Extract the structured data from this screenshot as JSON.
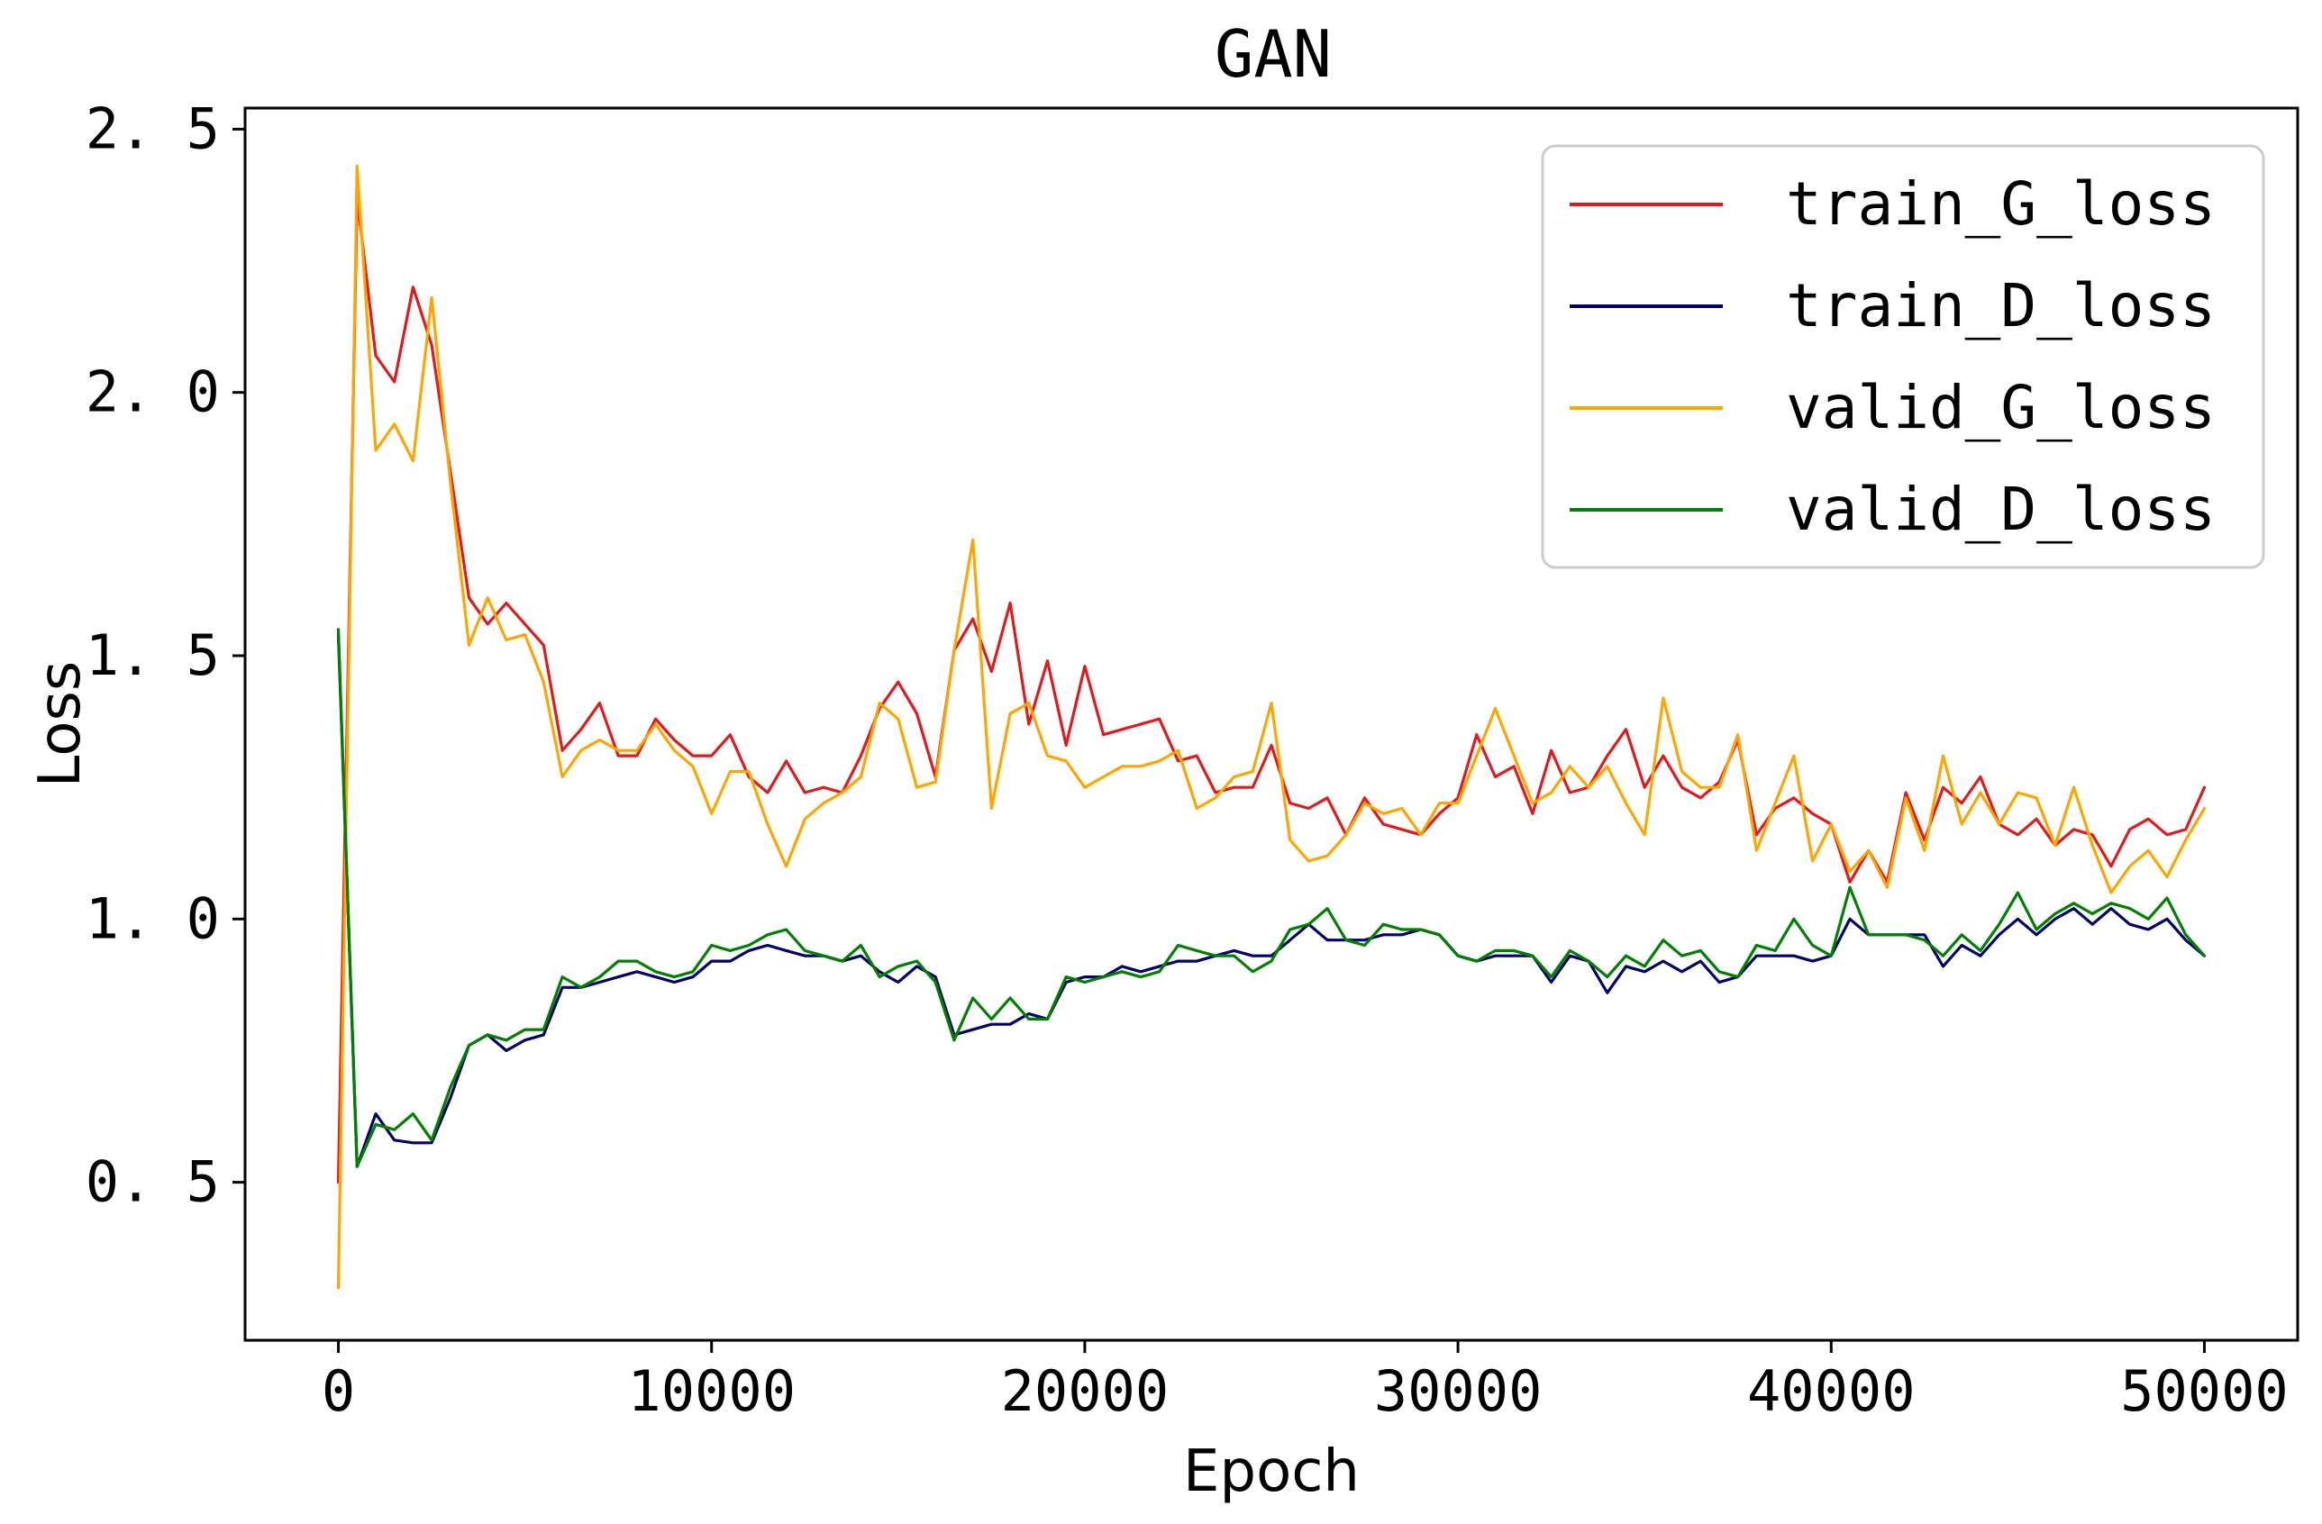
{
  "chart_data": {
    "type": "line",
    "title": "GAN",
    "xlabel": "Epoch",
    "ylabel": "Loss",
    "xlim": [
      -2500,
      52500
    ],
    "ylim": [
      0.2,
      2.54
    ],
    "xticks": [
      0,
      10000,
      20000,
      30000,
      40000,
      50000
    ],
    "xtick_labels": [
      "0",
      "10000",
      "20000",
      "30000",
      "40000",
      "50000"
    ],
    "yticks": [
      0.5,
      1.0,
      1.5,
      2.0,
      2.5
    ],
    "ytick_labels": [
      "0. 5",
      "1. 0",
      "1. 5",
      "2. 0",
      "2. 5"
    ],
    "grid": false,
    "legend_position": "upper right",
    "x": [
      0,
      500,
      1000,
      1500,
      2000,
      2500,
      3000,
      3500,
      4000,
      4500,
      5000,
      5500,
      6000,
      6500,
      7000,
      7500,
      8000,
      8500,
      9000,
      9500,
      10000,
      10500,
      11000,
      11500,
      12000,
      12500,
      13000,
      13500,
      14000,
      14500,
      15000,
      15500,
      16000,
      16500,
      17000,
      17500,
      18000,
      18500,
      19000,
      19500,
      20000,
      20500,
      21000,
      21500,
      22000,
      22500,
      23000,
      23500,
      24000,
      24500,
      25000,
      25500,
      26000,
      26500,
      27000,
      27500,
      28000,
      28500,
      29000,
      29500,
      30000,
      30500,
      31000,
      31500,
      32000,
      32500,
      33000,
      33500,
      34000,
      34500,
      35000,
      35500,
      36000,
      36500,
      37000,
      37500,
      38000,
      38500,
      39000,
      39500,
      40000,
      40500,
      41000,
      41500,
      42000,
      42500,
      43000,
      43500,
      44000,
      44500,
      45000,
      45500,
      46000,
      46500,
      47000,
      47500,
      48000,
      48500,
      49000,
      49500,
      50000
    ],
    "series": [
      {
        "name": "train_G_loss",
        "color": "#e31a1c",
        "values": [
          0.5,
          2.37,
          2.07,
          2.02,
          2.2,
          2.09,
          1.85,
          1.61,
          1.56,
          1.6,
          1.56,
          1.52,
          1.32,
          1.36,
          1.41,
          1.31,
          1.31,
          1.38,
          1.34,
          1.31,
          1.31,
          1.35,
          1.27,
          1.24,
          1.3,
          1.24,
          1.25,
          1.24,
          1.31,
          1.4,
          1.45,
          1.39,
          1.27,
          1.51,
          1.57,
          1.47,
          1.6,
          1.37,
          1.49,
          1.33,
          1.48,
          1.35,
          1.36,
          1.37,
          1.38,
          1.3,
          1.31,
          1.24,
          1.25,
          1.25,
          1.33,
          1.22,
          1.21,
          1.23,
          1.16,
          1.23,
          1.18,
          1.17,
          1.16,
          1.2,
          1.23,
          1.35,
          1.27,
          1.29,
          1.2,
          1.32,
          1.24,
          1.25,
          1.31,
          1.36,
          1.25,
          1.31,
          1.25,
          1.23,
          1.26,
          1.34,
          1.16,
          1.21,
          1.23,
          1.2,
          1.18,
          1.07,
          1.13,
          1.07,
          1.24,
          1.15,
          1.25,
          1.22,
          1.27,
          1.18,
          1.16,
          1.19,
          1.14,
          1.17,
          1.16,
          1.1,
          1.17,
          1.19,
          1.16,
          1.17,
          1.25
        ]
      },
      {
        "name": "train_D_loss",
        "color": "#00006b",
        "values": [
          1.54,
          0.53,
          0.63,
          0.58,
          0.575,
          0.575,
          0.66,
          0.76,
          0.78,
          0.75,
          0.77,
          0.78,
          0.87,
          0.87,
          0.88,
          0.89,
          0.9,
          0.89,
          0.88,
          0.89,
          0.92,
          0.92,
          0.94,
          0.95,
          0.94,
          0.93,
          0.93,
          0.92,
          0.93,
          0.9,
          0.88,
          0.91,
          0.89,
          0.78,
          0.79,
          0.8,
          0.8,
          0.82,
          0.81,
          0.88,
          0.89,
          0.89,
          0.91,
          0.9,
          0.91,
          0.92,
          0.92,
          0.93,
          0.94,
          0.93,
          0.93,
          0.96,
          0.99,
          0.96,
          0.96,
          0.96,
          0.97,
          0.97,
          0.98,
          0.97,
          0.93,
          0.92,
          0.93,
          0.93,
          0.93,
          0.88,
          0.93,
          0.92,
          0.86,
          0.91,
          0.9,
          0.92,
          0.9,
          0.92,
          0.88,
          0.89,
          0.93,
          0.93,
          0.93,
          0.92,
          0.93,
          1.0,
          0.97,
          0.97,
          0.97,
          0.97,
          0.91,
          0.95,
          0.93,
          0.97,
          1.0,
          0.97,
          1.0,
          1.02,
          0.99,
          1.02,
          0.99,
          0.98,
          1.0,
          0.96,
          0.93
        ]
      },
      {
        "name": "valid_G_loss",
        "color": "#ffa500",
        "values": [
          0.3,
          2.43,
          1.89,
          1.94,
          1.87,
          2.18,
          1.83,
          1.52,
          1.61,
          1.53,
          1.54,
          1.45,
          1.27,
          1.32,
          1.34,
          1.32,
          1.32,
          1.37,
          1.32,
          1.29,
          1.2,
          1.28,
          1.28,
          1.18,
          1.1,
          1.19,
          1.22,
          1.24,
          1.27,
          1.41,
          1.38,
          1.25,
          1.26,
          1.51,
          1.72,
          1.21,
          1.39,
          1.41,
          1.31,
          1.3,
          1.25,
          1.27,
          1.29,
          1.29,
          1.3,
          1.32,
          1.21,
          1.23,
          1.27,
          1.28,
          1.41,
          1.15,
          1.11,
          1.12,
          1.16,
          1.22,
          1.2,
          1.21,
          1.16,
          1.22,
          1.22,
          1.31,
          1.4,
          1.31,
          1.22,
          1.24,
          1.29,
          1.25,
          1.29,
          1.22,
          1.16,
          1.42,
          1.28,
          1.25,
          1.25,
          1.35,
          1.13,
          1.22,
          1.31,
          1.11,
          1.18,
          1.09,
          1.13,
          1.06,
          1.23,
          1.13,
          1.31,
          1.18,
          1.24,
          1.18,
          1.24,
          1.23,
          1.14,
          1.25,
          1.14,
          1.05,
          1.1,
          1.13,
          1.08,
          1.15,
          1.21
        ]
      },
      {
        "name": "valid_D_loss",
        "color": "#008000",
        "values": [
          1.55,
          0.53,
          0.61,
          0.6,
          0.63,
          0.58,
          0.68,
          0.76,
          0.78,
          0.77,
          0.79,
          0.79,
          0.89,
          0.87,
          0.89,
          0.92,
          0.92,
          0.9,
          0.89,
          0.9,
          0.95,
          0.94,
          0.95,
          0.97,
          0.98,
          0.94,
          0.93,
          0.92,
          0.95,
          0.89,
          0.91,
          0.92,
          0.88,
          0.77,
          0.85,
          0.81,
          0.85,
          0.81,
          0.81,
          0.89,
          0.88,
          0.89,
          0.9,
          0.89,
          0.9,
          0.95,
          0.94,
          0.93,
          0.93,
          0.9,
          0.92,
          0.98,
          0.99,
          1.02,
          0.96,
          0.95,
          0.99,
          0.98,
          0.98,
          0.97,
          0.93,
          0.92,
          0.94,
          0.94,
          0.93,
          0.89,
          0.94,
          0.92,
          0.89,
          0.93,
          0.91,
          0.96,
          0.93,
          0.94,
          0.9,
          0.89,
          0.95,
          0.94,
          1.0,
          0.95,
          0.93,
          1.06,
          0.97,
          0.97,
          0.97,
          0.96,
          0.93,
          0.97,
          0.94,
          0.99,
          1.05,
          0.98,
          1.01,
          1.03,
          1.01,
          1.03,
          1.02,
          1.0,
          1.04,
          0.97,
          0.93
        ]
      }
    ]
  }
}
